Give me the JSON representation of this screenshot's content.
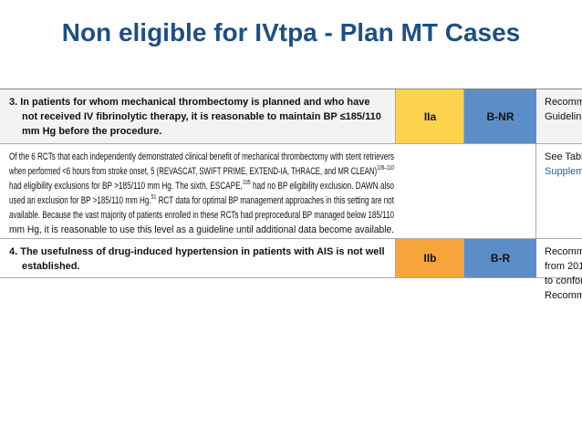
{
  "header": {
    "title": "Non eligible for IVtpa - Plan MT Cases"
  },
  "table": {
    "rows": [
      {
        "lines": [
          [
            {
              "t": "3. In patients for whom mechanical thrombectomy is planned and who have"
            }
          ],
          [
            {
              "t": "not received IV fibrinolytic therapy, it is reasonable to maintain BP ≤185/110"
            }
          ],
          [
            {
              "t": "mm Hg before the procedure."
            }
          ]
        ],
        "cor": "IIa",
        "loe": "B-NR",
        "note": [
          "Recomm",
          "Guidelin"
        ]
      },
      {
        "lines": [
          [
            {
              "t": "Of the 6 RCTs that each independently demonstrated clinical benefit of mechanical thrombectomy with stent retrievers"
            }
          ],
          [
            {
              "t": "when performed <6 hours from stroke onset, 5 (REVASCAT, SWIFT PRIME, EXTEND-IA, THRACE, and MR CLEAN)"
            },
            {
              "sup": "106–110"
            }
          ],
          [
            {
              "t": "had eligibility exclusions for BP >185/110 mm Hg. The sixth, ESCAPE,"
            },
            {
              "sup": "105"
            },
            {
              "t": " had no BP eligibility exclusion. DAWN also"
            }
          ],
          [
            {
              "t": "used an exclusion for BP >185/110 mm Hg."
            },
            {
              "sup": "51"
            },
            {
              "t": " RCT data for optimal BP management approaches in this setting are not"
            }
          ],
          [
            {
              "t": "available. Because the vast majority of patients enrolled in these RCTs had preprocedural BP managed below 185/110"
            }
          ],
          [
            {
              "t": "mm Hg, it is reasonable to use this level as a guideline until additional data become available."
            }
          ]
        ],
        "note": [
          "See Tabl",
          "Supplem"
        ]
      },
      {
        "lines": [
          [
            {
              "t": "4. The usefulness of drug-induced hypertension in patients with AIS is not well"
            }
          ],
          [
            {
              "t": "established."
            }
          ]
        ],
        "cor": "IIb",
        "loe": "B-R",
        "note": [
          "Recomm",
          "from 201",
          "to confor",
          "Recomm"
        ]
      }
    ]
  }
}
